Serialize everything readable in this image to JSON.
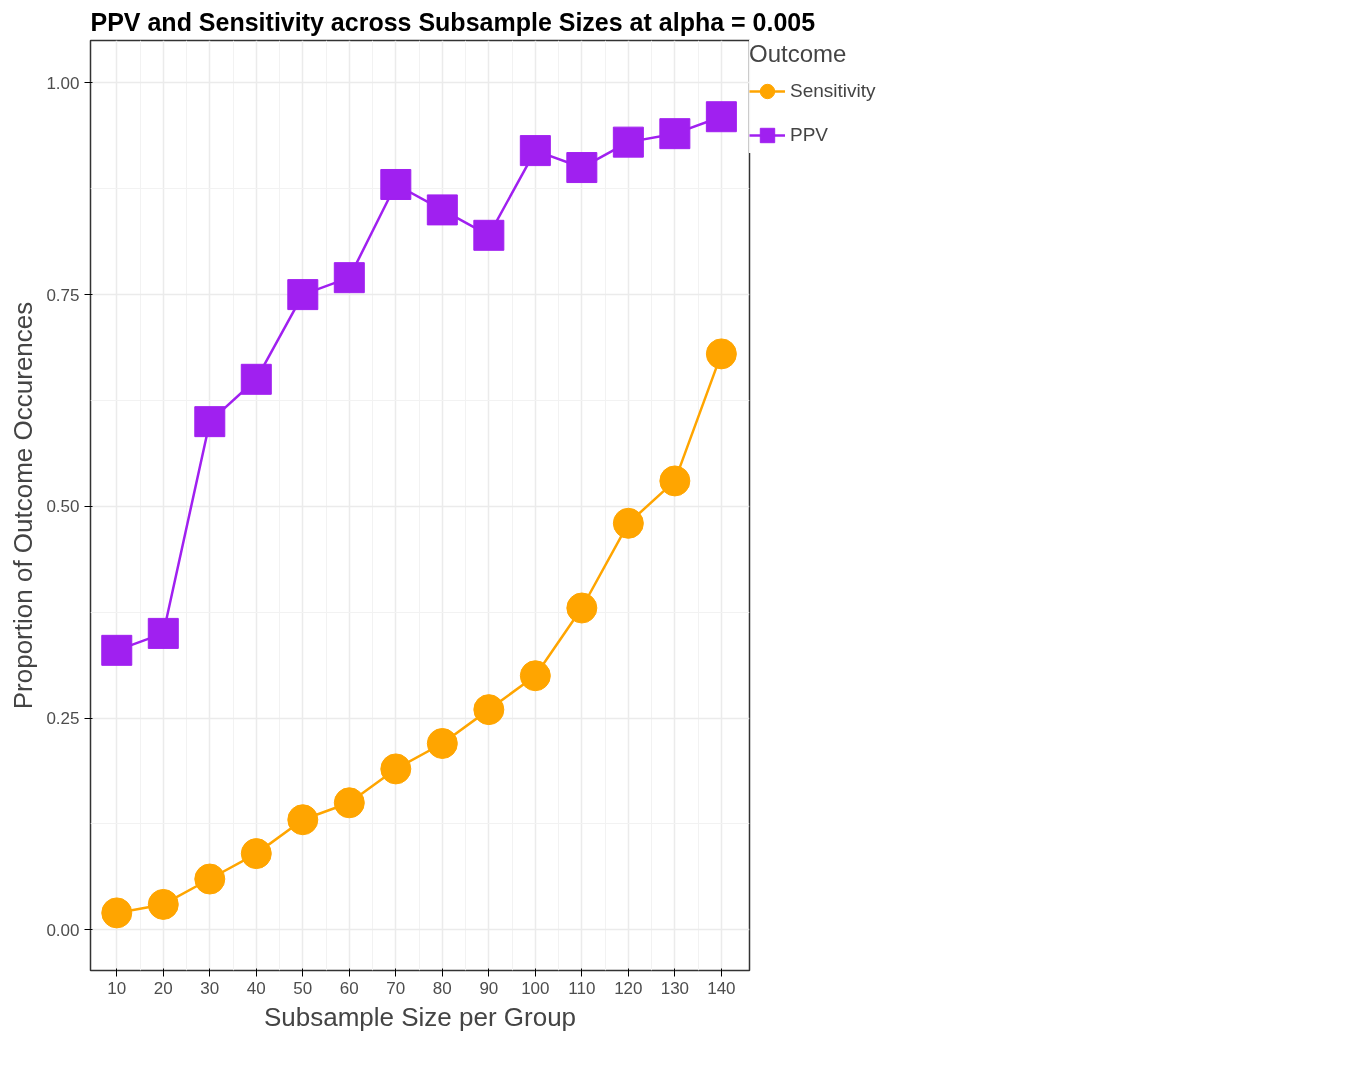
{
  "chart_data": {
    "type": "line",
    "title": "PPV and Sensitivity across Subsample Sizes at alpha = 0.005",
    "xlabel": "Subsample Size per Group",
    "ylabel": "Proportion of Outcome Occurences",
    "legend_title": "Outcome",
    "x": [
      10,
      20,
      30,
      40,
      50,
      60,
      70,
      80,
      90,
      100,
      110,
      120,
      130,
      140
    ],
    "series": [
      {
        "name": "Sensitivity",
        "color": "#ffa500",
        "marker": "circle",
        "values": [
          0.02,
          0.03,
          0.06,
          0.09,
          0.13,
          0.15,
          0.19,
          0.22,
          0.26,
          0.3,
          0.38,
          0.48,
          0.53,
          0.68
        ]
      },
      {
        "name": "PPV",
        "color": "#a020f0",
        "marker": "square",
        "values": [
          0.33,
          0.35,
          0.6,
          0.65,
          0.75,
          0.77,
          0.88,
          0.85,
          0.82,
          0.92,
          0.9,
          0.93,
          0.94,
          0.96
        ]
      }
    ],
    "xlim": [
      4.35,
      146.05
    ],
    "ylim": [
      -0.048,
      1.05
    ],
    "xticks": [
      10,
      20,
      30,
      40,
      50,
      60,
      70,
      80,
      90,
      100,
      110,
      120,
      130,
      140
    ],
    "yticks": [
      {
        "value": 0,
        "label": "0.00"
      },
      {
        "value": 0.25,
        "label": "0.25"
      },
      {
        "value": 0.5,
        "label": "0.50"
      },
      {
        "value": 0.75,
        "label": "0.75"
      },
      {
        "value": 1,
        "label": "1.00"
      }
    ],
    "grid": true,
    "legend": "right",
    "line_style": "solid"
  }
}
